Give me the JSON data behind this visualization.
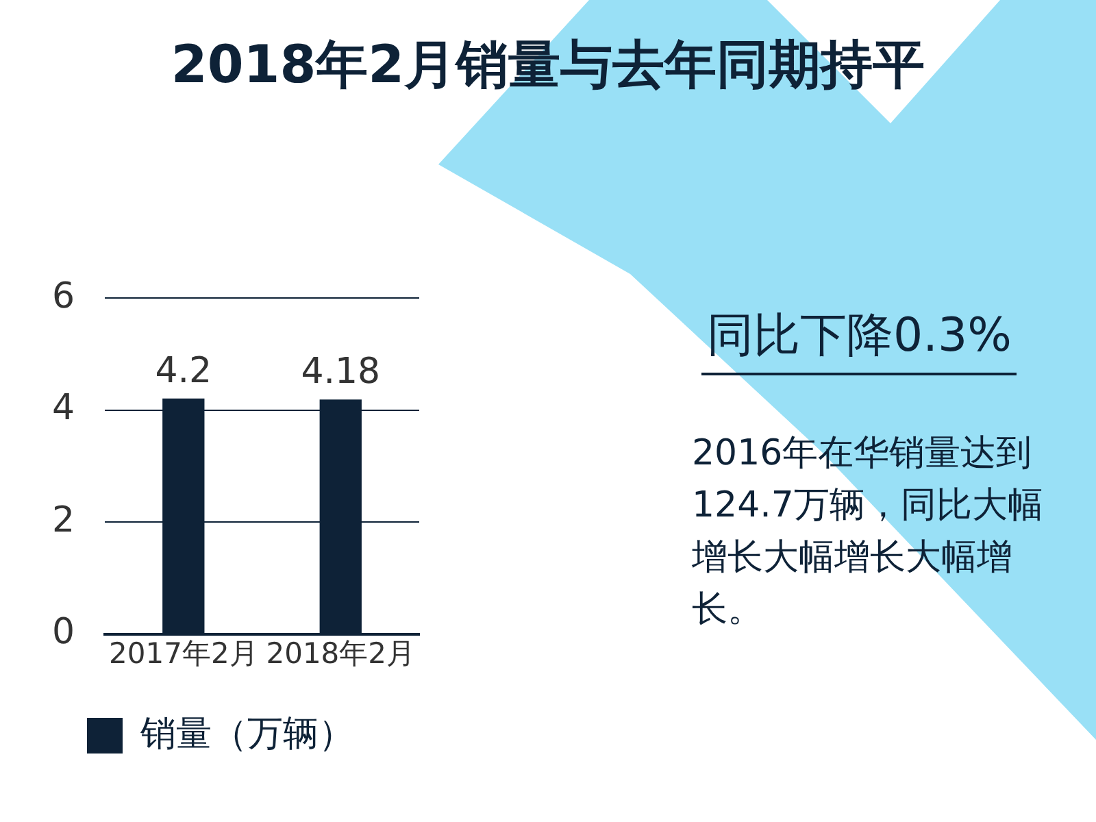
{
  "chart_data": {
    "type": "bar",
    "title": "2018年2月销量与去年同期持平",
    "categories": [
      "2017年2月",
      "2018年2月"
    ],
    "series": [
      {
        "name": "销量（万辆）",
        "color": "#0e2237",
        "values": [
          4.2,
          4.18
        ]
      }
    ],
    "ylim": [
      0,
      6
    ],
    "yticks": [
      0,
      2,
      4,
      6
    ],
    "grid": "y",
    "legend": "bottom",
    "data_labels": true,
    "annotations": [
      "同比下降0.3%",
      "2016年在华销量达到124.7万辆，同比大幅增长大幅增长大幅增长。"
    ]
  }
}
